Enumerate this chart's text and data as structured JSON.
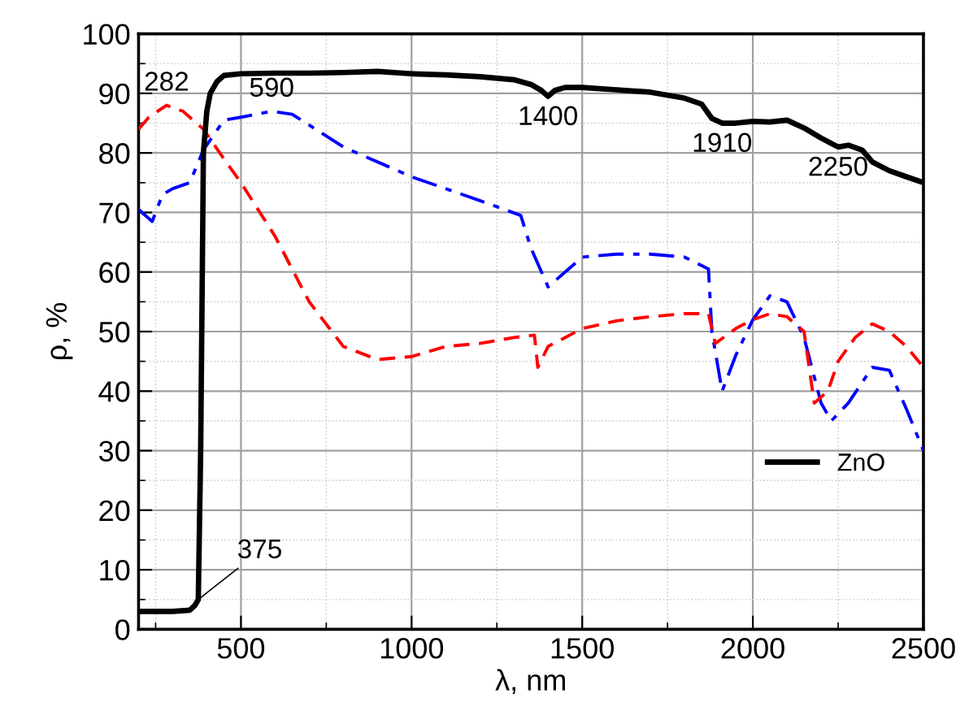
{
  "chart_data": {
    "type": "line",
    "xlabel": "λ, nm",
    "ylabel": "ρ, %",
    "xlim": [
      200,
      2500
    ],
    "xticks": [
      500,
      1000,
      1500,
      2000,
      2500
    ],
    "ylim": [
      0,
      100
    ],
    "yticks": [
      0,
      10,
      20,
      30,
      40,
      50,
      60,
      70,
      80,
      90,
      100
    ],
    "grid": true,
    "legend": "lower right",
    "series": [
      {
        "name": "ZnO",
        "color": "#000000",
        "line_style": "solid",
        "x": [
          200,
          250,
          300,
          350,
          365,
          375,
          382,
          390,
          400,
          410,
          430,
          450,
          500,
          600,
          700,
          800,
          900,
          1000,
          1100,
          1200,
          1300,
          1350,
          1380,
          1400,
          1420,
          1450,
          1500,
          1600,
          1700,
          1800,
          1850,
          1880,
          1910,
          1950,
          2000,
          2050,
          2100,
          2150,
          2200,
          2250,
          2280,
          2320,
          2350,
          2400,
          2450,
          2500
        ],
        "values": [
          3,
          3,
          3,
          3.2,
          4,
          5,
          30,
          80,
          87,
          90,
          92,
          93,
          93.3,
          93.4,
          93.4,
          93.5,
          93.7,
          93.3,
          93.1,
          92.8,
          92.3,
          91.5,
          90.5,
          89.5,
          90.5,
          91,
          91,
          90.6,
          90.2,
          89.2,
          88.2,
          85.8,
          85,
          85,
          85.3,
          85.2,
          85.5,
          84.2,
          82.5,
          81,
          81.3,
          80.5,
          78.5,
          77,
          76,
          75
        ]
      },
      {
        "color": "#ff0000",
        "line_style": "dashed",
        "x": [
          200,
          230,
          282,
          330,
          390,
          450,
          500,
          600,
          700,
          800,
          900,
          1000,
          1100,
          1200,
          1300,
          1360,
          1370,
          1400,
          1500,
          1600,
          1700,
          1800,
          1870,
          1890,
          1950,
          2000,
          2050,
          2100,
          2150,
          2180,
          2220,
          2250,
          2300,
          2350,
          2400,
          2450,
          2500
        ],
        "values": [
          84,
          86,
          88,
          87,
          84,
          79,
          75,
          66,
          55,
          47.5,
          45.3,
          45.8,
          47.5,
          48,
          49,
          49.4,
          44,
          47.5,
          50.5,
          51.8,
          52.5,
          53,
          53,
          48,
          50.5,
          52,
          53,
          52.5,
          50,
          38,
          40,
          45,
          49,
          51.3,
          50,
          47.5,
          44
        ]
      },
      {
        "color": "#0000ff",
        "line_style": "dashdot",
        "x": [
          200,
          240,
          270,
          300,
          350,
          390,
          450,
          500,
          590,
          650,
          800,
          1000,
          1200,
          1320,
          1350,
          1400,
          1450,
          1500,
          1600,
          1700,
          1800,
          1870,
          1880,
          1910,
          1950,
          2000,
          2050,
          2100,
          2150,
          2200,
          2230,
          2280,
          2350,
          2400,
          2450,
          2500
        ],
        "values": [
          70.5,
          68.5,
          73,
          74,
          75,
          80.5,
          85.5,
          86,
          87,
          86.5,
          81,
          76,
          72,
          69.5,
          64,
          57.5,
          60,
          62.5,
          63,
          63,
          62.5,
          60.5,
          50,
          40,
          46,
          52,
          56,
          55,
          49,
          38,
          35,
          38,
          44,
          43.5,
          37,
          30
        ]
      }
    ],
    "annotations": [
      {
        "text": "282",
        "x": 282,
        "y": 88
      },
      {
        "text": "590",
        "x": 590,
        "y": 87
      },
      {
        "text": "1400",
        "x": 1400,
        "y": 89.5
      },
      {
        "text": "1910",
        "x": 1910,
        "y": 85
      },
      {
        "text": "2250",
        "x": 2250,
        "y": 81
      },
      {
        "text": "375",
        "x": 375,
        "y": 5
      }
    ]
  }
}
